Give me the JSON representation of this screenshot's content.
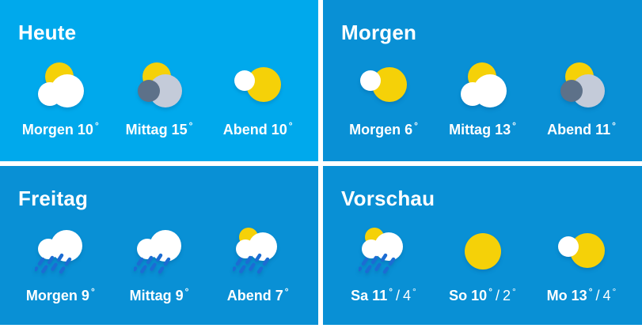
{
  "theme": {
    "quadrant_light_blue": "#00a9ec",
    "quadrant_dark_blue": "#0990d5",
    "page_background": "#ffffff",
    "text_color": "#ffffff",
    "sun_yellow": "#f5d108",
    "cloud_white": "#ffffff",
    "cloud_gray_light": "#c4cbd9",
    "cloud_gray_dark": "#5d7189",
    "rain_blue": "#1c6cd3"
  },
  "labels": {
    "degree": "°",
    "separator": "/"
  },
  "quadrants": [
    {
      "title": "Heute",
      "variant": "light",
      "items": [
        {
          "label": "Morgen",
          "temp": "10",
          "icon": "sun-behind-cloud"
        },
        {
          "label": "Mittag",
          "temp": "15",
          "icon": "sun-behind-gray-cloud"
        },
        {
          "label": "Abend",
          "temp": "10",
          "icon": "sun-small-cloud"
        }
      ]
    },
    {
      "title": "Morgen",
      "variant": "dark",
      "items": [
        {
          "label": "Morgen",
          "temp": "6",
          "icon": "sun-small-cloud"
        },
        {
          "label": "Mittag",
          "temp": "13",
          "icon": "sun-behind-cloud"
        },
        {
          "label": "Abend",
          "temp": "11",
          "icon": "sun-behind-gray-cloud"
        }
      ]
    },
    {
      "title": "Freitag",
      "variant": "dark",
      "items": [
        {
          "label": "Morgen",
          "temp": "9",
          "icon": "rain-cloud"
        },
        {
          "label": "Mittag",
          "temp": "9",
          "icon": "rain-cloud"
        },
        {
          "label": "Abend",
          "temp": "7",
          "icon": "sun-rain-cloud"
        }
      ]
    },
    {
      "title": "Vorschau",
      "variant": "dark",
      "items": [
        {
          "label": "Sa",
          "temp": "11",
          "temp_low": "4",
          "icon": "sun-rain-cloud"
        },
        {
          "label": "So",
          "temp": "10",
          "temp_low": "2",
          "icon": "sun"
        },
        {
          "label": "Mo",
          "temp": "13",
          "temp_low": "4",
          "icon": "sun-small-cloud"
        }
      ]
    }
  ]
}
